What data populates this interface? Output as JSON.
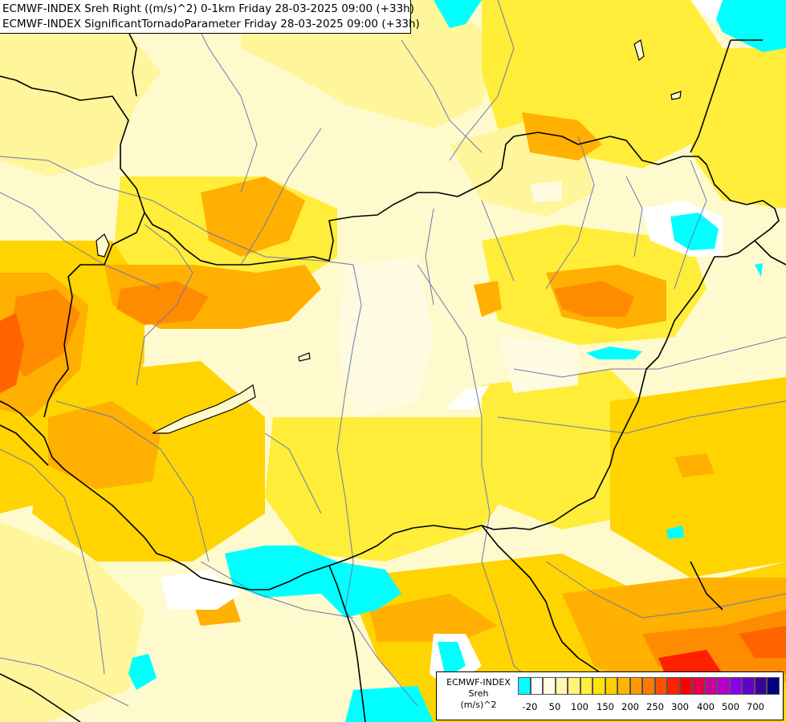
{
  "header": {
    "line1": "ECMWF-INDEX Sreh Right ((m/s)^2) 0-1km Friday 28-03-2025 09:00 (+33h)",
    "line2": "ECMWF-INDEX SignificantTornadoParameter Friday 28-03-2025 09:00 (+33h)"
  },
  "legend": {
    "title_line1": "ECMWF-INDEX",
    "title_line2": "Sreh",
    "title_line3": "(m/s)^2",
    "ticks": [
      "-20",
      "50",
      "100",
      "150",
      "200",
      "250",
      "300",
      "400",
      "500",
      "700"
    ],
    "colors": [
      "#00ffff",
      "#ffffff",
      "#fffde0",
      "#fff9b0",
      "#fff37a",
      "#ffef3c",
      "#ffe600",
      "#ffd000",
      "#ffb400",
      "#ff9900",
      "#ff7a00",
      "#ff5000",
      "#ff2000",
      "#ff0000",
      "#e6004a",
      "#cc0099",
      "#b400cc",
      "#8c00e6",
      "#6400c8",
      "#3c0096",
      "#000080"
    ]
  },
  "map": {
    "colors": {
      "base": "#fffacd",
      "pale": "#fffbe0",
      "light_yellow": "#fff59a",
      "yellow": "#ffed3a",
      "gold": "#ffd400",
      "orange_light": "#ffb000",
      "orange": "#ff8c00",
      "orange_dark": "#ff6400",
      "red": "#ff2000",
      "cyan": "#00ffff",
      "white": "#ffffff",
      "border": "#000000",
      "river": "#6e78b4"
    }
  }
}
